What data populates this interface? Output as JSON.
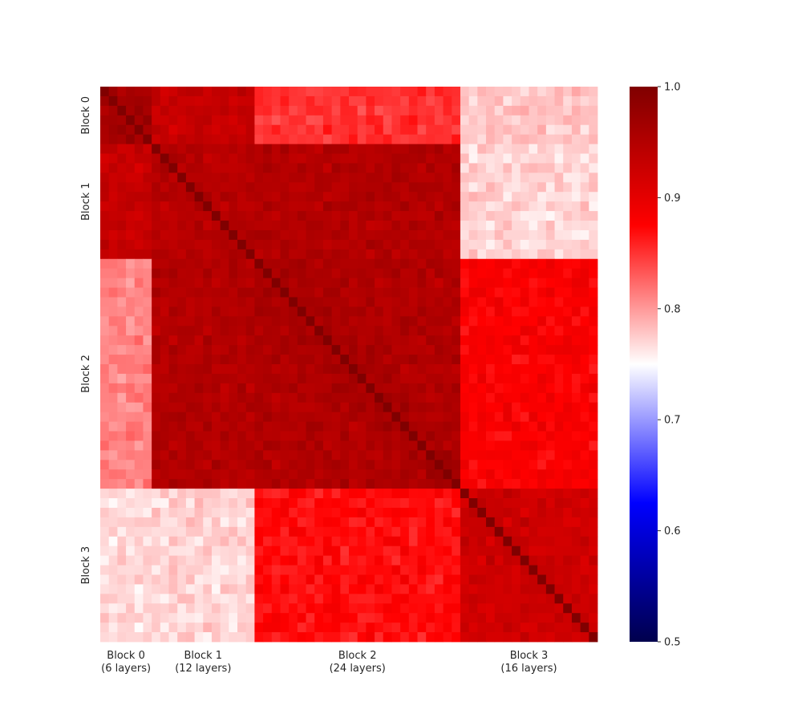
{
  "chart_data": {
    "type": "heatmap",
    "title": "",
    "xlabel": "",
    "ylabel": "",
    "n_layers": 58,
    "x_blocks": [
      {
        "label": "Block 0",
        "sublabel": "(6 layers)",
        "size": 6
      },
      {
        "label": "Block 1",
        "sublabel": "(12 layers)",
        "size": 12
      },
      {
        "label": "Block 2",
        "sublabel": "(24 layers)",
        "size": 24
      },
      {
        "label": "Block 3",
        "sublabel": "(16 layers)",
        "size": 16
      }
    ],
    "y_blocks": [
      {
        "label": "Block 0",
        "size": 6
      },
      {
        "label": "Block 1",
        "size": 12
      },
      {
        "label": "Block 2",
        "size": 24
      },
      {
        "label": "Block 3",
        "size": 16
      }
    ],
    "block_similarity": [
      [
        0.97,
        0.93,
        0.85,
        0.78
      ],
      [
        0.93,
        0.95,
        0.95,
        0.77
      ],
      [
        0.81,
        0.95,
        0.96,
        0.88
      ],
      [
        0.77,
        0.77,
        0.87,
        0.93
      ]
    ],
    "diagonal_value": 1.0,
    "colorbar": {
      "colormap": "seismic",
      "vmin": 0.5,
      "vmax": 1.0,
      "ticks": [
        "0.5",
        "0.6",
        "0.7",
        "0.8",
        "0.9",
        "1.0"
      ]
    },
    "colors": {
      "low": "#00004d",
      "mid_low": "#0000ff",
      "center": "#ffffff",
      "mid_high": "#ff0000",
      "high": "#800000"
    }
  }
}
